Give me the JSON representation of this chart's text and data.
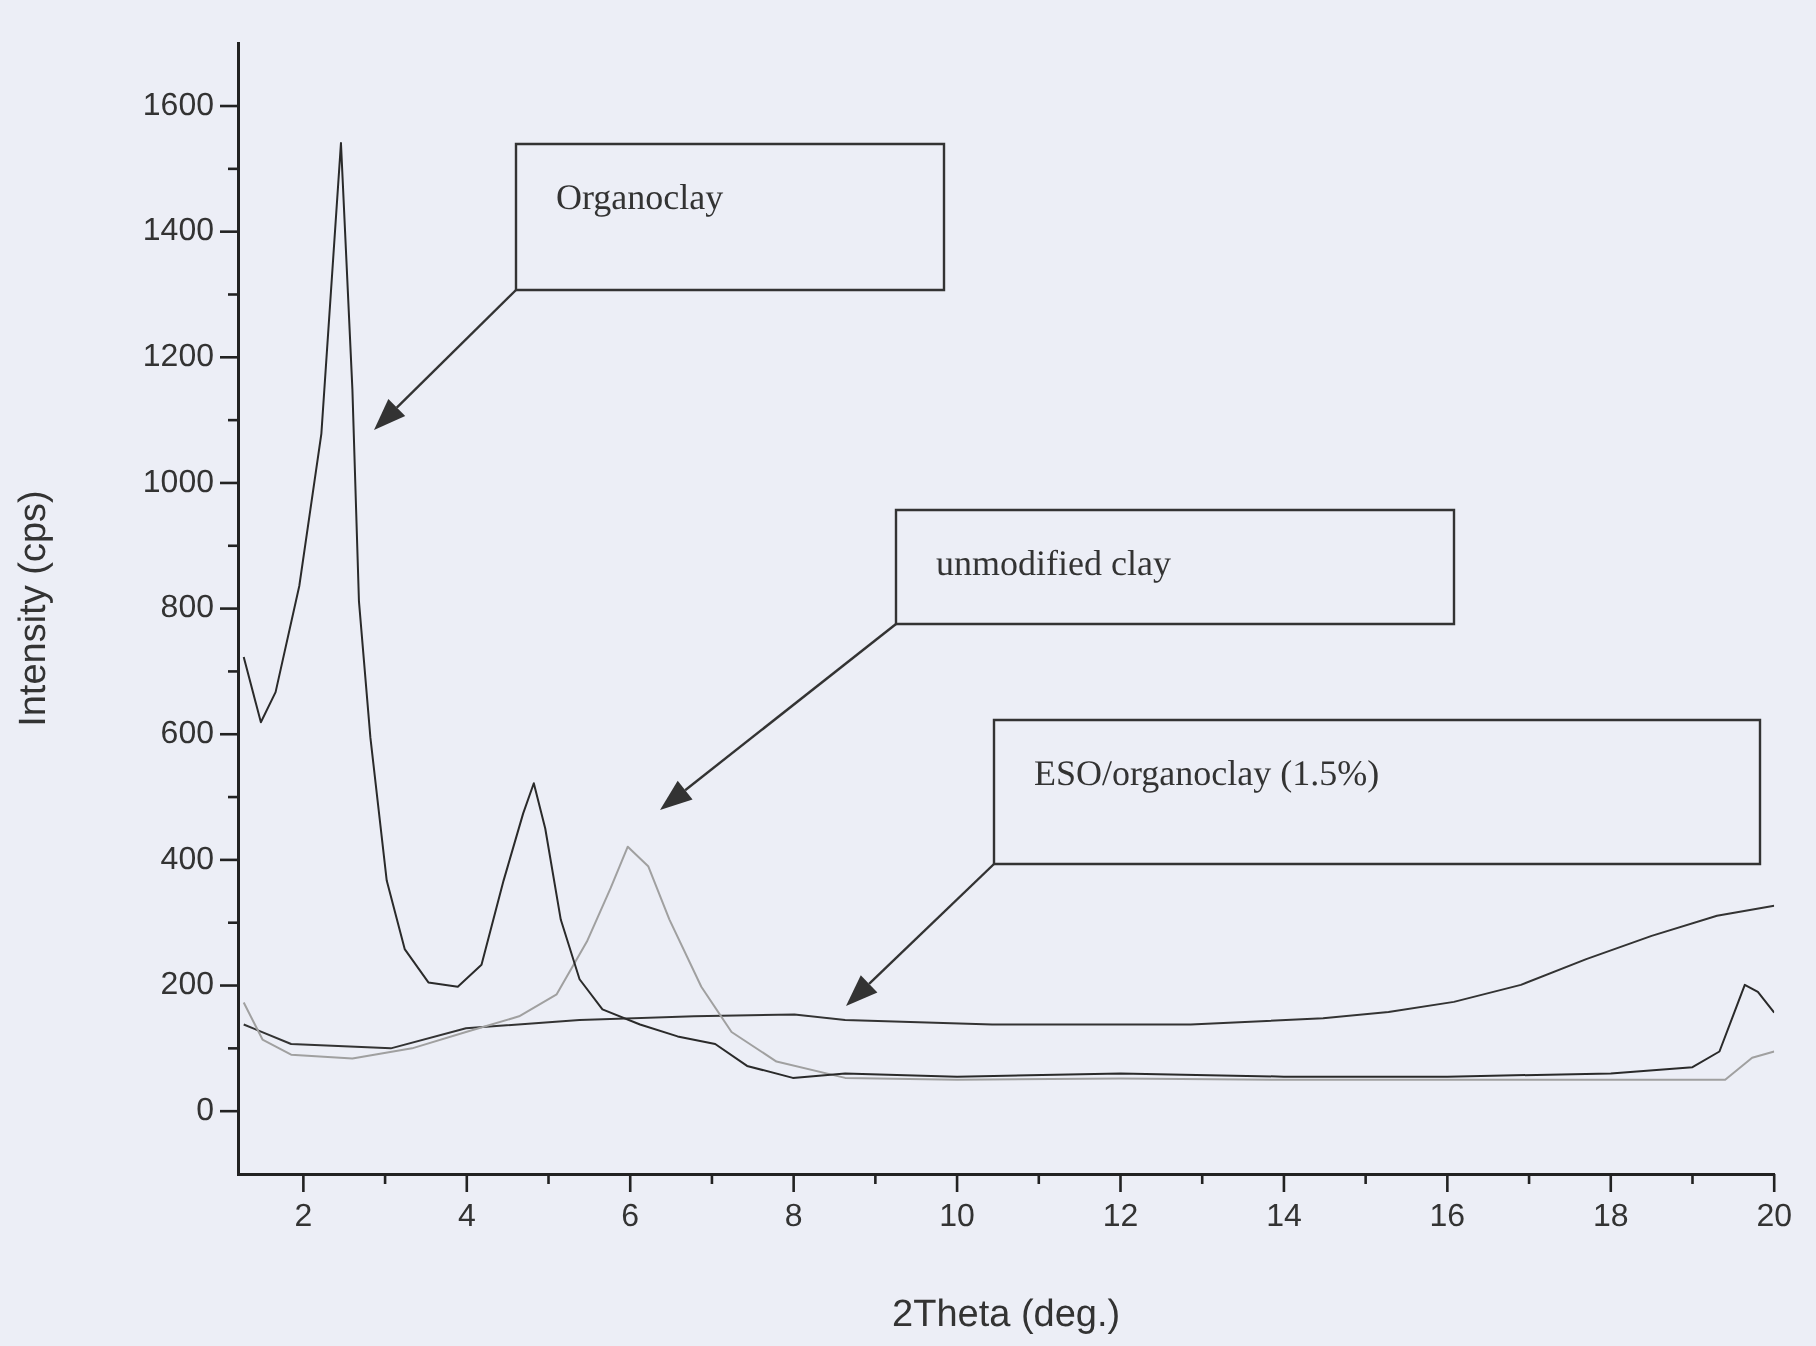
{
  "chart_data": {
    "type": "line",
    "xlabel": "2Theta (deg.)",
    "ylabel": "Intensity (cps)",
    "xlim": [
      1.2,
      20
    ],
    "ylim": [
      -100,
      1700
    ],
    "xticks": [
      2,
      {
        "value": 3,
        "label": null
      },
      4,
      {
        "value": 5,
        "label": null
      },
      6,
      {
        "value": 7,
        "label": null
      },
      8,
      {
        "value": 9,
        "label": null
      },
      10,
      {
        "value": 11,
        "label": null
      },
      12,
      {
        "value": 13,
        "label": null
      },
      14,
      {
        "value": 15,
        "label": null
      },
      16,
      {
        "value": 17,
        "label": null
      },
      18,
      {
        "value": 19,
        "label": null
      },
      20
    ],
    "yticks": [
      0,
      {
        "value": 100,
        "label": null
      },
      200,
      {
        "value": 300,
        "label": null
      },
      400,
      {
        "value": 500,
        "label": null
      },
      600,
      {
        "value": 700,
        "label": null
      },
      800,
      {
        "value": 900,
        "label": null
      },
      1000,
      {
        "value": 1100,
        "label": null
      },
      1200,
      {
        "value": 1300,
        "label": null
      },
      1400,
      {
        "value": 1500,
        "label": null
      },
      1600
    ],
    "legend": false,
    "marker": "none",
    "series": [
      {
        "color": "#2a2a2a",
        "x": [
          1.27,
          1.48,
          1.66,
          1.95,
          2.22,
          2.46,
          2.6,
          2.68,
          2.82,
          3.02,
          3.24,
          3.53,
          3.89,
          4.18,
          4.45,
          4.69,
          4.82,
          4.96,
          5.15,
          5.38,
          5.66,
          6.12,
          6.58,
          7.04,
          7.43,
          7.99,
          8.63,
          10,
          12,
          14,
          16,
          18,
          19,
          19.33,
          19.64,
          19.8,
          20
        ],
        "values": [
          723,
          619,
          667,
          836,
          1078,
          1541,
          1149,
          812,
          595,
          367,
          258,
          205,
          198,
          233,
          367,
          474,
          522,
          450,
          305,
          210,
          162,
          138,
          119,
          107,
          72,
          53,
          60,
          55,
          60,
          55,
          55,
          60,
          70,
          95,
          201,
          190,
          157
        ]
      },
      {
        "color": "#a0a0a0",
        "x": [
          1.27,
          1.5,
          1.85,
          2.6,
          3.33,
          3.99,
          4.64,
          5.1,
          5.47,
          5.76,
          5.97,
          6.22,
          6.48,
          6.87,
          7.24,
          7.79,
          8.63,
          10,
          12,
          14,
          16,
          18,
          19.4,
          19.73,
          20
        ],
        "values": [
          173,
          114,
          90,
          84,
          100,
          126,
          151,
          186,
          270,
          355,
          421,
          390,
          305,
          198,
          126,
          79,
          53,
          50,
          52,
          50,
          50,
          50,
          50,
          85,
          95
        ]
      },
      {
        "color": "#333333",
        "x": [
          1.27,
          1.85,
          3.07,
          3.99,
          5.38,
          6.78,
          8.01,
          8.63,
          10.43,
          12.86,
          14.48,
          15.28,
          16.08,
          16.9,
          17.7,
          18.5,
          19.3,
          20
        ],
        "values": [
          138,
          107,
          100,
          132,
          145,
          151,
          154,
          145,
          138,
          138,
          148,
          158,
          174,
          201,
          242,
          279,
          311,
          327
        ]
      }
    ],
    "annotations": [
      "Organoclay",
      "unmodified clay",
      "ESO/organoclay (1.5%)"
    ]
  }
}
